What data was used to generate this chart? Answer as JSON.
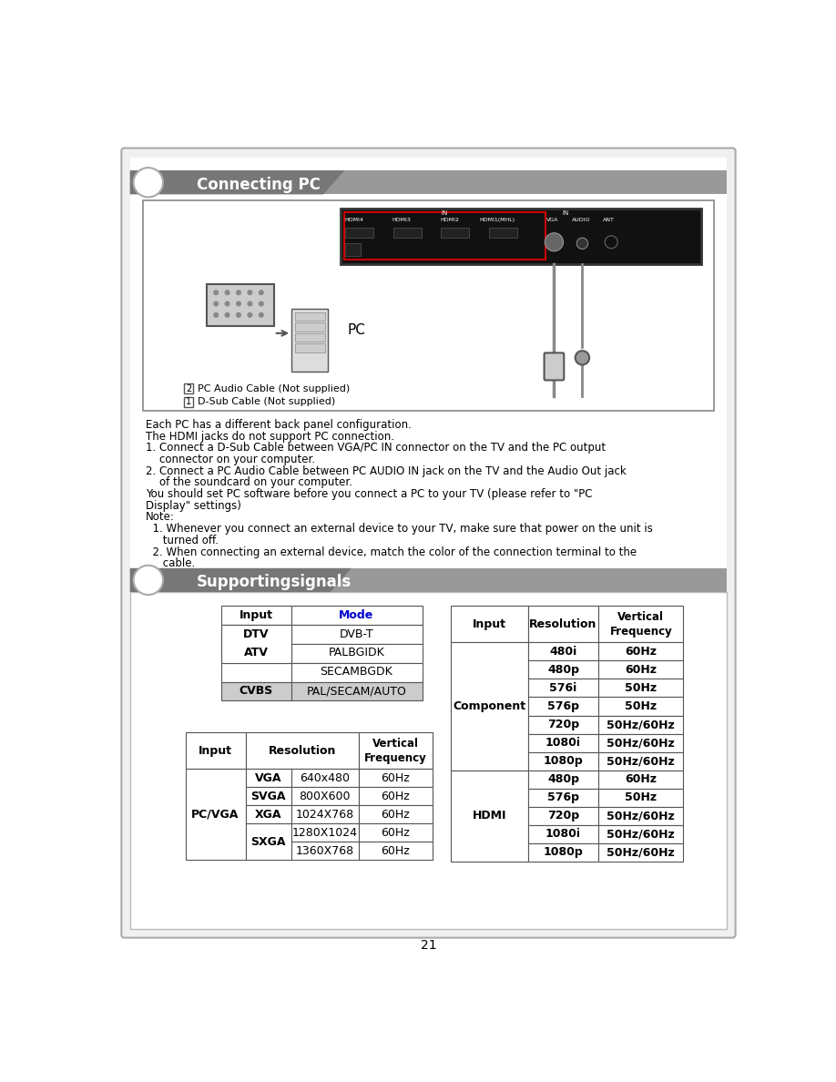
{
  "page_number": "21",
  "section1_title": "Connecting PC",
  "section2_title": "Supportingsignals",
  "connecting_pc_text": [
    "Each PC has a different back panel configuration.",
    "The HDMI jacks do not support PC connection.",
    "1. Connect a D-Sub Cable between VGA/PC IN connector on the TV and the PC output",
    "    connector on your computer.",
    "2. Connect a PC Audio Cable between PC AUDIO IN jack on the TV and the Audio Out jack",
    "    of the soundcard on your computer.",
    "You should set PC software before you connect a PC to your TV (please refer to \"PC",
    "Display\" settings)",
    "Note:",
    "  1. Whenever you connect an external device to your TV, make sure that power on the unit is",
    "     turned off.",
    "  2. When connecting an external device, match the color of the connection terminal to the",
    "     cable."
  ],
  "table1_rows": [
    [
      "DTV",
      "DVB-T",
      false,
      false
    ],
    [
      "ATV",
      "PALBGIDK",
      false,
      false
    ],
    [
      "",
      "SECAMBGDK",
      false,
      false
    ],
    [
      "CVBS",
      "PAL/SECAM/AUTO",
      true,
      false
    ]
  ],
  "table2_rows": [
    [
      "VGA",
      "640x480",
      "60Hz"
    ],
    [
      "SVGA",
      "800X600",
      "60Hz"
    ],
    [
      "XGA",
      "1024X768",
      "60Hz"
    ],
    [
      "SXGA",
      "1280X1024",
      "60Hz"
    ],
    [
      "",
      "1360X768",
      "60Hz"
    ]
  ],
  "table3_component_rows": [
    [
      "480i",
      "60Hz"
    ],
    [
      "480p",
      "60Hz"
    ],
    [
      "576i",
      "50Hz"
    ],
    [
      "576p",
      "50Hz"
    ],
    [
      "720p",
      "50Hz/60Hz"
    ],
    [
      "1080i",
      "50Hz/60Hz"
    ],
    [
      "1080p",
      "50Hz/60Hz"
    ]
  ],
  "table3_hdmi_rows": [
    [
      "480p",
      "60Hz"
    ],
    [
      "576p",
      "50Hz"
    ],
    [
      "720p",
      "50Hz/60Hz"
    ],
    [
      "1080i",
      "50Hz/60Hz"
    ],
    [
      "1080p",
      "50Hz/60Hz"
    ]
  ],
  "gray_bg": "#888888",
  "dark_tab_bg": "#666666",
  "page_bg": "#f0f0f0",
  "content_bg": "#ffffff",
  "border_color": "#999999",
  "text_color": "#000000",
  "mode_color": "#0000cc",
  "cvbs_bg": "#cccccc"
}
